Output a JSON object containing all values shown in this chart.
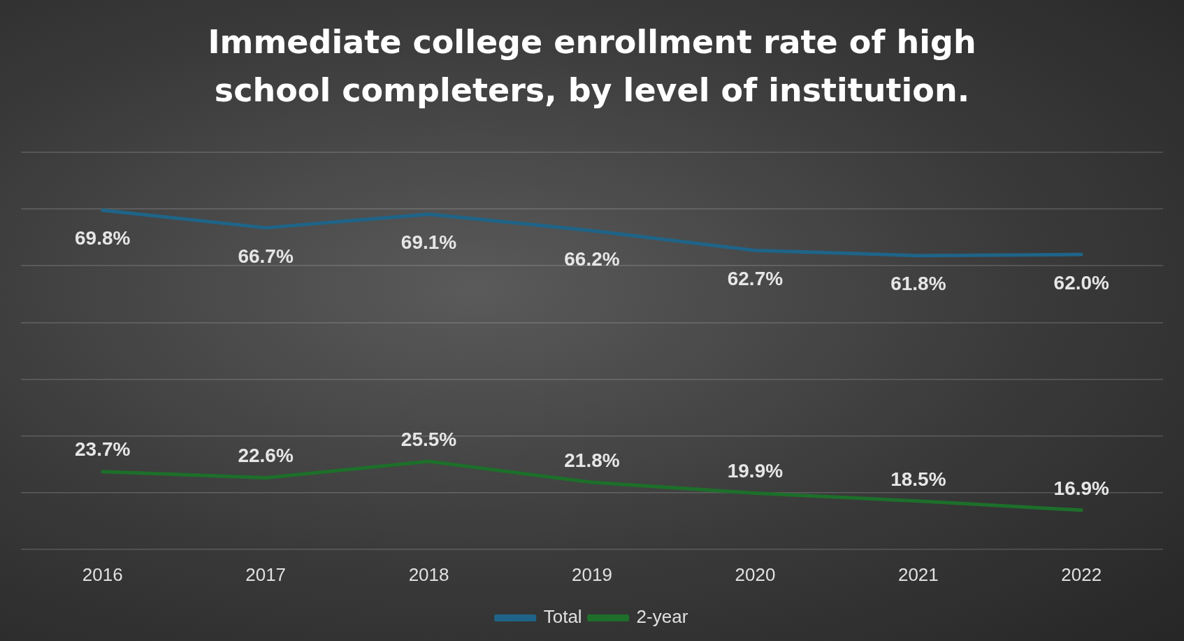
{
  "chart_data": {
    "type": "line",
    "title": "Immediate college enrollment rate of high school completers, by level of institution.",
    "categories": [
      "2016",
      "2017",
      "2018",
      "2019",
      "2020",
      "2021",
      "2022"
    ],
    "series": [
      {
        "name": "Total",
        "color": "#1f6488",
        "values": [
          69.8,
          66.7,
          69.1,
          66.2,
          62.7,
          61.8,
          62.0
        ],
        "value_labels": [
          "69.8%",
          "66.7%",
          "69.1%",
          "66.2%",
          "62.7%",
          "61.8%",
          "62.0%"
        ]
      },
      {
        "name": "2-year",
        "color": "#1d6f2a",
        "values": [
          23.7,
          22.6,
          25.5,
          21.8,
          19.9,
          18.5,
          16.9
        ],
        "value_labels": [
          "23.7%",
          "22.6%",
          "25.5%",
          "21.8%",
          "19.9%",
          "18.5%",
          "16.9%"
        ]
      }
    ],
    "tick_labels": "x",
    "grid": "y",
    "legend": "bottom",
    "marker": "none",
    "line_style": "solid"
  }
}
